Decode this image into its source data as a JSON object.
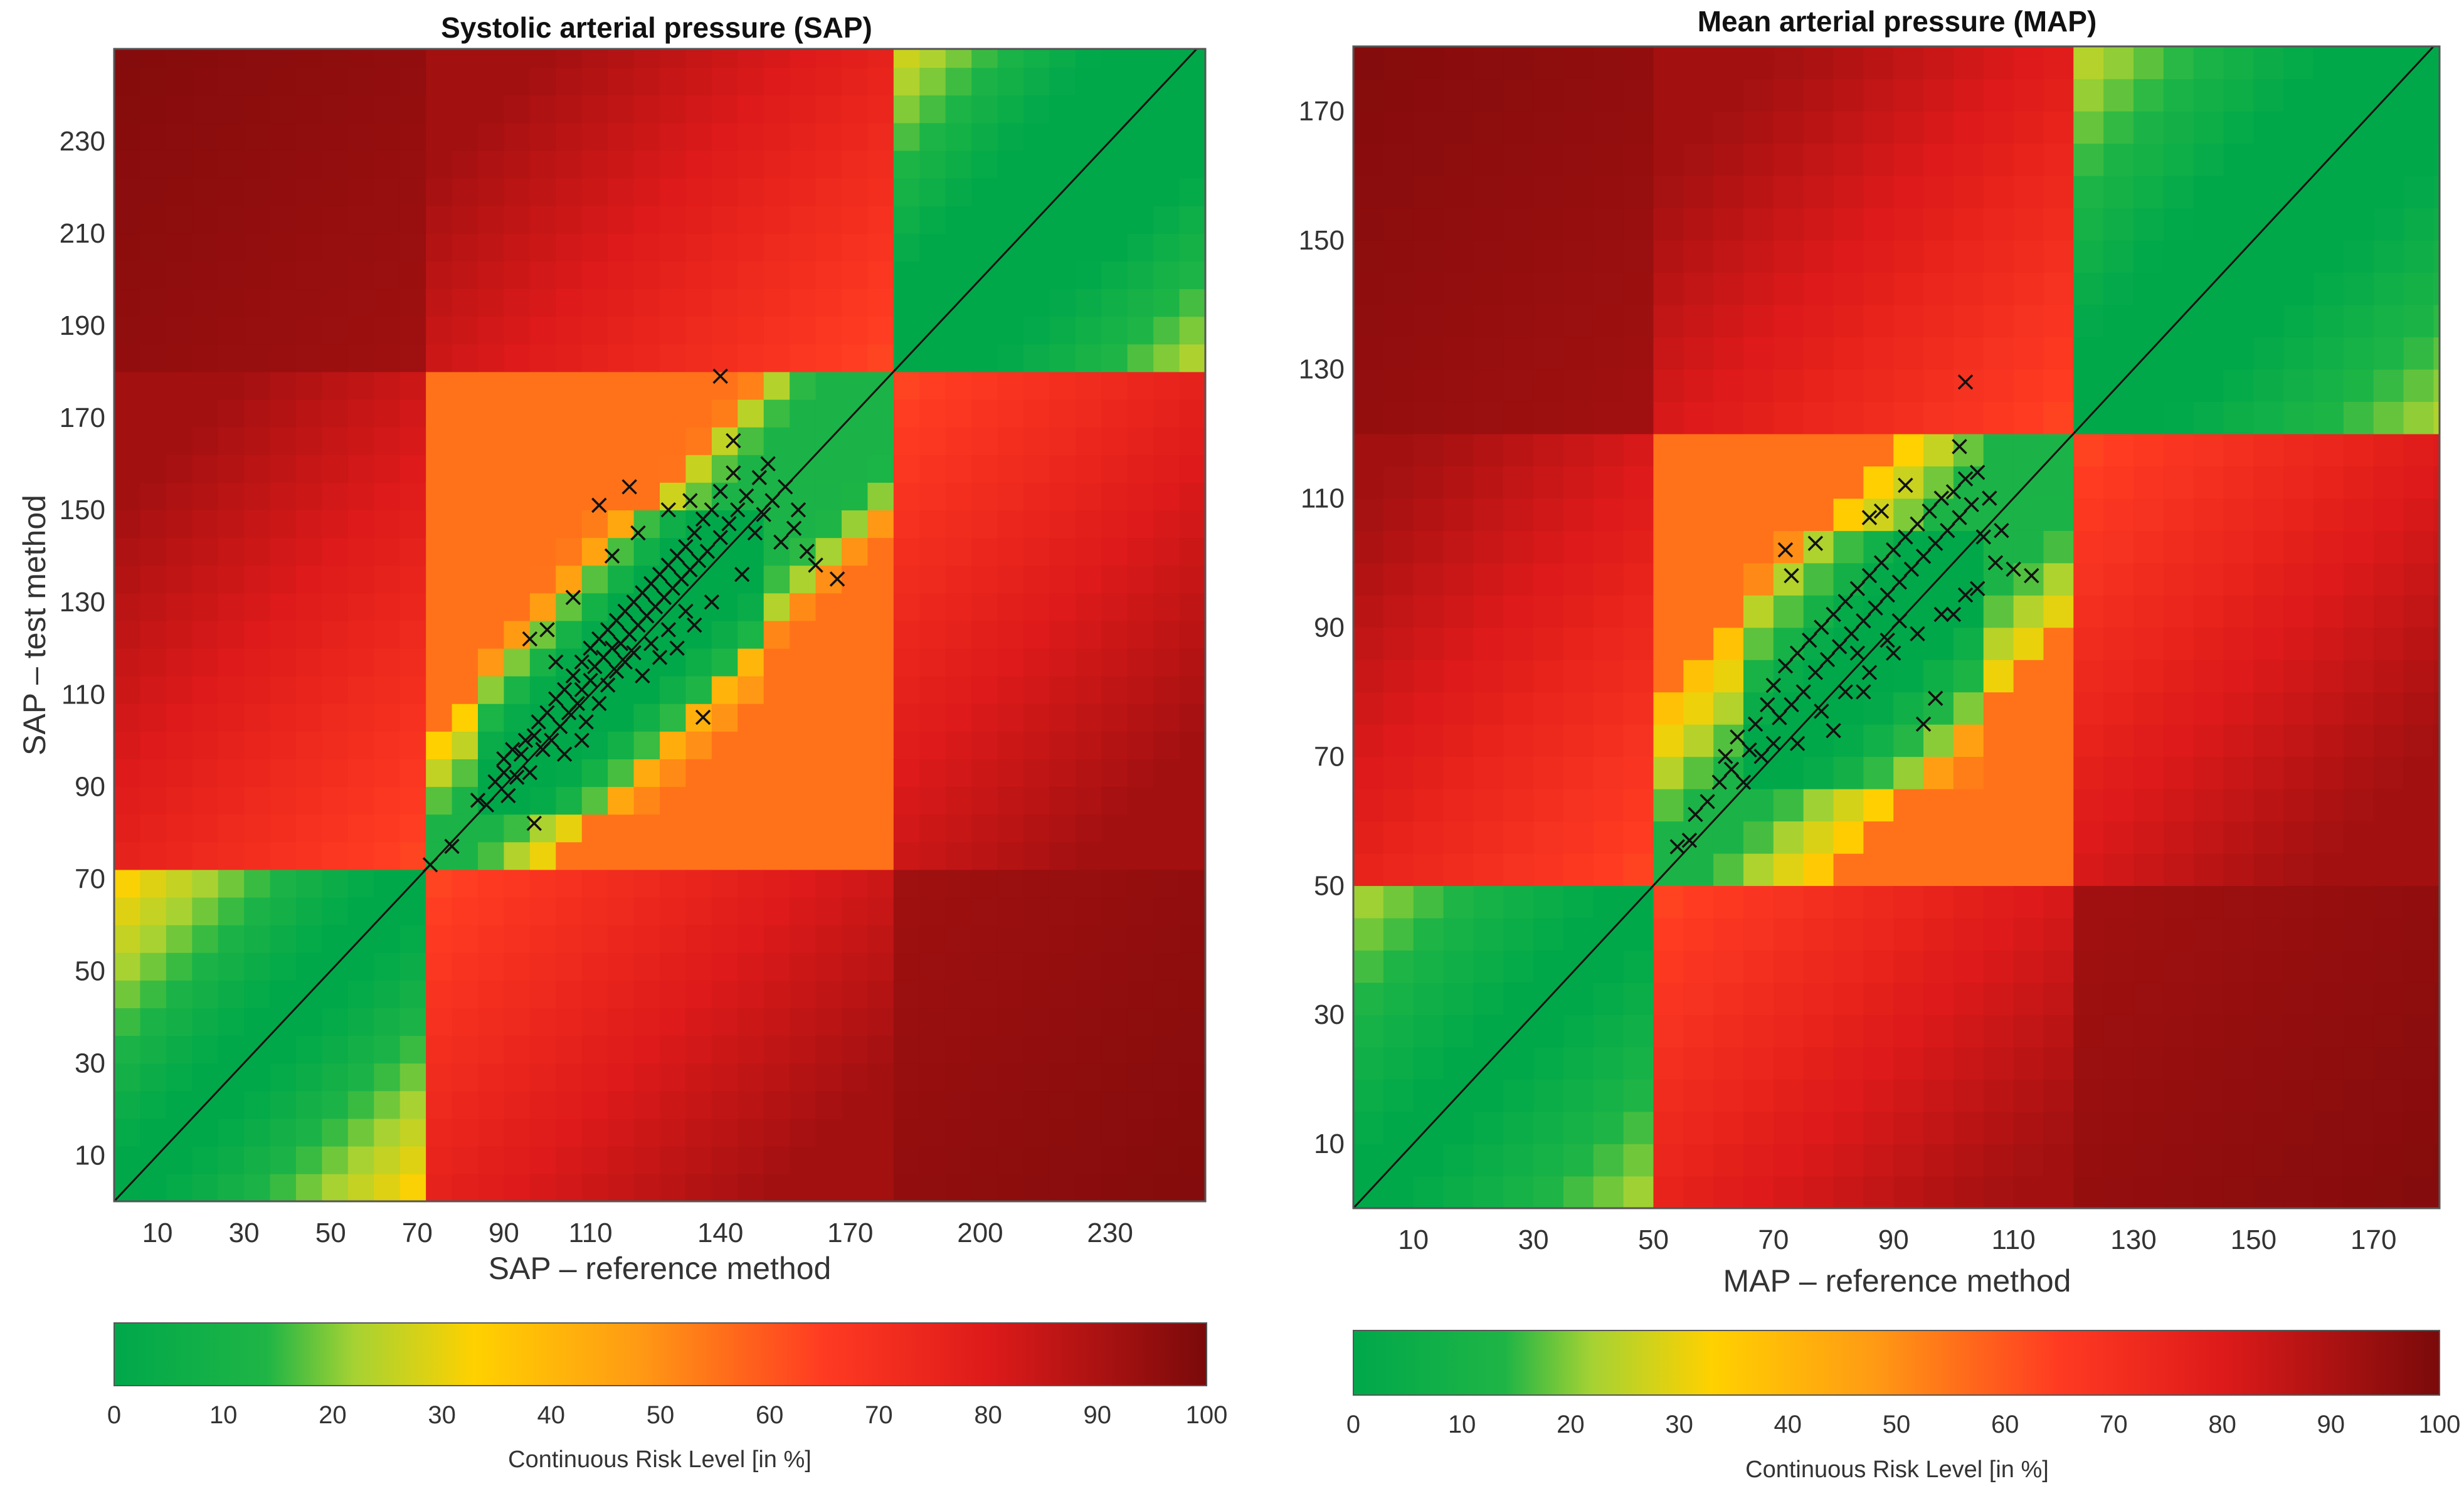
{
  "chart_data": [
    {
      "type": "heatmap",
      "title": "Systolic arterial pressure (SAP)",
      "xlabel": "SAP – reference method",
      "ylabel": "SAP – test method",
      "xlim": [
        0,
        252
      ],
      "ylim": [
        0,
        250
      ],
      "xticks": [
        10,
        30,
        50,
        70,
        90,
        110,
        140,
        170,
        200,
        230
      ],
      "xtick_labels": [
        "10",
        "30",
        "50",
        "70",
        "90",
        "110",
        "140",
        "170",
        "200",
        "230"
      ],
      "yticks": [
        10,
        30,
        50,
        70,
        90,
        110,
        130,
        150,
        170,
        190,
        210,
        230
      ],
      "ytick_labels": [
        "10",
        "30",
        "50",
        "70",
        "90",
        "110",
        "130",
        "150",
        "170",
        "190",
        "210",
        "230"
      ],
      "cell_size": 6,
      "risk_model": {
        "low": 70,
        "high": 180,
        "inner_low": 85,
        "inner_high": 150,
        "max": 250,
        "tolerance_floor": 8,
        "tolerance_pct": 0.1
      },
      "identity_line": true,
      "points": [
        [
          73,
          73
        ],
        [
          78,
          77
        ],
        [
          84,
          87
        ],
        [
          86,
          86
        ],
        [
          88,
          91
        ],
        [
          90,
          93
        ],
        [
          90,
          96
        ],
        [
          91,
          88
        ],
        [
          92,
          98
        ],
        [
          93,
          92
        ],
        [
          94,
          97
        ],
        [
          95,
          100
        ],
        [
          96,
          93
        ],
        [
          97,
          101
        ],
        [
          97,
          82
        ],
        [
          98,
          104
        ],
        [
          99,
          98
        ],
        [
          100,
          106
        ],
        [
          101,
          100
        ],
        [
          102,
          109
        ],
        [
          103,
          103
        ],
        [
          104,
          111
        ],
        [
          104,
          97
        ],
        [
          105,
          106
        ],
        [
          106,
          114
        ],
        [
          107,
          108
        ],
        [
          108,
          117
        ],
        [
          108,
          111
        ],
        [
          109,
          104
        ],
        [
          110,
          120
        ],
        [
          110,
          113
        ],
        [
          111,
          116
        ],
        [
          112,
          122
        ],
        [
          112,
          108
        ],
        [
          113,
          118
        ],
        [
          114,
          124
        ],
        [
          114,
          112
        ],
        [
          115,
          120
        ],
        [
          116,
          126
        ],
        [
          116,
          115
        ],
        [
          117,
          121
        ],
        [
          118,
          128
        ],
        [
          118,
          117
        ],
        [
          119,
          123
        ],
        [
          120,
          130
        ],
        [
          120,
          119
        ],
        [
          121,
          125
        ],
        [
          122,
          132
        ],
        [
          122,
          114
        ],
        [
          123,
          127
        ],
        [
          124,
          134
        ],
        [
          124,
          121
        ],
        [
          125,
          129
        ],
        [
          126,
          136
        ],
        [
          126,
          118
        ],
        [
          127,
          131
        ],
        [
          128,
          138
        ],
        [
          128,
          124
        ],
        [
          129,
          133
        ],
        [
          130,
          140
        ],
        [
          130,
          120
        ],
        [
          131,
          135
        ],
        [
          132,
          142
        ],
        [
          132,
          128
        ],
        [
          133,
          137
        ],
        [
          134,
          145
        ],
        [
          134,
          125
        ],
        [
          135,
          139
        ],
        [
          136,
          148
        ],
        [
          137,
          141
        ],
        [
          138,
          150
        ],
        [
          138,
          130
        ],
        [
          140,
          144
        ],
        [
          140,
          154
        ],
        [
          142,
          147
        ],
        [
          143,
          158
        ],
        [
          144,
          150
        ],
        [
          145,
          136
        ],
        [
          146,
          153
        ],
        [
          148,
          145
        ],
        [
          149,
          157
        ],
        [
          150,
          149
        ],
        [
          151,
          160
        ],
        [
          152,
          152
        ],
        [
          154,
          143
        ],
        [
          155,
          155
        ],
        [
          157,
          146
        ],
        [
          158,
          150
        ],
        [
          160,
          141
        ],
        [
          162,
          138
        ],
        [
          167,
          135
        ],
        [
          140,
          179
        ],
        [
          143,
          165
        ],
        [
          112,
          151
        ],
        [
          119,
          155
        ],
        [
          96,
          122
        ],
        [
          100,
          124
        ],
        [
          106,
          131
        ],
        [
          133,
          152
        ],
        [
          121,
          145
        ],
        [
          128,
          150
        ],
        [
          115,
          140
        ],
        [
          102,
          117
        ],
        [
          108,
          100
        ],
        [
          136,
          105
        ]
      ]
    },
    {
      "type": "heatmap",
      "title": "Mean arterial pressure (MAP)",
      "xlabel": "MAP – reference method",
      "ylabel": "",
      "xlim": [
        0,
        181
      ],
      "ylim": [
        0,
        180
      ],
      "xticks": [
        10,
        30,
        50,
        70,
        90,
        110,
        130,
        150,
        170
      ],
      "xtick_labels": [
        "10",
        "30",
        "50",
        "70",
        "90",
        "110",
        "130",
        "150",
        "170"
      ],
      "yticks": [
        10,
        30,
        50,
        70,
        90,
        110,
        130,
        150,
        170
      ],
      "ytick_labels": [
        "10",
        "30",
        "50",
        "70",
        "90",
        "110",
        "130",
        "150",
        "170"
      ],
      "cell_size": 5,
      "risk_model": {
        "low": 50,
        "high": 120,
        "inner_low": 63,
        "inner_high": 107,
        "max": 180,
        "tolerance_floor": 6,
        "tolerance_pct": 0.1
      },
      "identity_line": true,
      "points": [
        [
          54,
          56
        ],
        [
          56,
          57
        ],
        [
          57,
          61
        ],
        [
          59,
          63
        ],
        [
          61,
          66
        ],
        [
          62,
          70
        ],
        [
          63,
          68
        ],
        [
          64,
          73
        ],
        [
          65,
          66
        ],
        [
          66,
          71
        ],
        [
          67,
          75
        ],
        [
          68,
          70
        ],
        [
          69,
          78
        ],
        [
          70,
          72
        ],
        [
          70,
          81
        ],
        [
          71,
          76
        ],
        [
          72,
          84
        ],
        [
          73,
          78
        ],
        [
          74,
          86
        ],
        [
          74,
          72
        ],
        [
          75,
          80
        ],
        [
          76,
          88
        ],
        [
          77,
          83
        ],
        [
          78,
          90
        ],
        [
          78,
          77
        ],
        [
          79,
          85
        ],
        [
          80,
          92
        ],
        [
          81,
          87
        ],
        [
          82,
          94
        ],
        [
          82,
          80
        ],
        [
          83,
          89
        ],
        [
          84,
          96
        ],
        [
          85,
          91
        ],
        [
          86,
          98
        ],
        [
          86,
          83
        ],
        [
          87,
          93
        ],
        [
          88,
          100
        ],
        [
          89,
          95
        ],
        [
          90,
          102
        ],
        [
          90,
          86
        ],
        [
          91,
          97
        ],
        [
          92,
          104
        ],
        [
          93,
          99
        ],
        [
          94,
          106
        ],
        [
          94,
          89
        ],
        [
          95,
          101
        ],
        [
          96,
          108
        ],
        [
          97,
          103
        ],
        [
          98,
          110
        ],
        [
          98,
          92
        ],
        [
          99,
          105
        ],
        [
          100,
          111
        ],
        [
          101,
          107
        ],
        [
          102,
          113
        ],
        [
          102,
          95
        ],
        [
          103,
          109
        ],
        [
          104,
          114
        ],
        [
          105,
          104
        ],
        [
          106,
          110
        ],
        [
          107,
          100
        ],
        [
          108,
          105
        ],
        [
          110,
          99
        ],
        [
          113,
          98
        ],
        [
          102,
          128
        ],
        [
          101,
          118
        ],
        [
          72,
          102
        ],
        [
          77,
          103
        ],
        [
          73,
          98
        ],
        [
          86,
          107
        ],
        [
          88,
          108
        ],
        [
          92,
          112
        ],
        [
          95,
          75
        ],
        [
          97,
          79
        ],
        [
          85,
          80
        ],
        [
          80,
          74
        ],
        [
          100,
          92
        ],
        [
          104,
          96
        ],
        [
          89,
          88
        ],
        [
          91,
          91
        ],
        [
          84,
          86
        ]
      ]
    }
  ],
  "colorbars": [
    {
      "label": "Continuous Risk Level [in %]",
      "ticks": [
        "0",
        "10",
        "20",
        "30",
        "40",
        "50",
        "60",
        "70",
        "80",
        "90",
        "100"
      ]
    },
    {
      "label": "Continuous Risk Level [in %]",
      "ticks": [
        "0",
        "10",
        "20",
        "30",
        "40",
        "50",
        "60",
        "70",
        "80",
        "90",
        "100"
      ]
    }
  ],
  "colors": {
    "stops": [
      {
        "at": 0.0,
        "hex": "#00a84a"
      },
      {
        "at": 0.14,
        "hex": "#1fb546"
      },
      {
        "at": 0.22,
        "hex": "#a6d233"
      },
      {
        "at": 0.33,
        "hex": "#ffd100"
      },
      {
        "at": 0.48,
        "hex": "#ff9a14"
      },
      {
        "at": 0.65,
        "hex": "#ff3a22"
      },
      {
        "at": 0.8,
        "hex": "#de1a1a"
      },
      {
        "at": 1.0,
        "hex": "#7a0a0a"
      }
    ],
    "marker": "#111111",
    "line": "#111111"
  }
}
